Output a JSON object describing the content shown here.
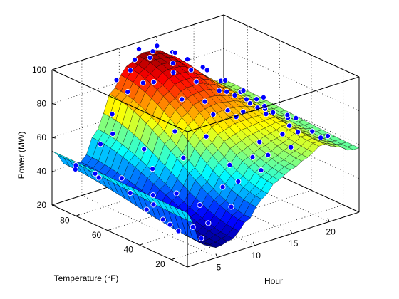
{
  "chart_data": {
    "type": "surface-scatter-3d",
    "axes": {
      "x": {
        "label": "Hour",
        "range": [
          1,
          24
        ],
        "ticks": [
          "5",
          "10",
          "15",
          "20"
        ]
      },
      "y": {
        "label": "Temperature (°F)",
        "range": [
          10,
          95
        ],
        "ticks": [
          "20",
          "40",
          "60",
          "80"
        ]
      },
      "z": {
        "label": "Power (MW)",
        "range": [
          20,
          100
        ],
        "ticks": [
          "20",
          "40",
          "60",
          "80",
          "100"
        ]
      }
    },
    "grid": true,
    "colormap": "jet",
    "surface_profile": {
      "hour": [
        1,
        3,
        5,
        7,
        9,
        11,
        13,
        15,
        17,
        19,
        21,
        23
      ],
      "power_at_high_temperature": [
        52,
        41,
        40,
        56,
        76,
        88,
        93,
        92,
        86,
        76,
        68,
        62
      ],
      "power_at_low_temperature": [
        52,
        30,
        26,
        28,
        36,
        46,
        54,
        58,
        62,
        67,
        63,
        58
      ]
    },
    "scatter_series": [
      {
        "marker": "filled-circle",
        "color": "#0000ff",
        "points_note_free_sample": true,
        "points": [
          [
            1,
            80,
            50
          ],
          [
            2,
            85,
            44
          ],
          [
            3,
            75,
            42
          ],
          [
            4,
            82,
            40
          ],
          [
            5,
            70,
            41
          ],
          [
            6,
            88,
            52
          ],
          [
            7,
            60,
            48
          ],
          [
            7,
            85,
            58
          ],
          [
            8,
            90,
            66
          ],
          [
            8,
            70,
            54
          ],
          [
            9,
            85,
            80
          ],
          [
            9,
            92,
            84
          ],
          [
            10,
            88,
            90
          ],
          [
            10,
            80,
            86
          ],
          [
            11,
            90,
            94
          ],
          [
            11,
            78,
            86
          ],
          [
            12,
            85,
            96
          ],
          [
            12,
            92,
            98
          ],
          [
            13,
            88,
            97
          ],
          [
            13,
            75,
            90
          ],
          [
            14,
            90,
            98
          ],
          [
            14,
            80,
            92
          ],
          [
            15,
            85,
            95
          ],
          [
            15,
            70,
            84
          ],
          [
            16,
            88,
            92
          ],
          [
            16,
            78,
            86
          ],
          [
            17,
            85,
            88
          ],
          [
            17,
            65,
            78
          ],
          [
            18,
            80,
            84
          ],
          [
            18,
            60,
            76
          ],
          [
            19,
            82,
            80
          ],
          [
            19,
            55,
            72
          ],
          [
            20,
            78,
            74
          ],
          [
            20,
            62,
            70
          ],
          [
            21,
            80,
            72
          ],
          [
            21,
            55,
            66
          ],
          [
            22,
            75,
            66
          ],
          [
            22,
            60,
            64
          ],
          [
            23,
            78,
            64
          ],
          [
            23,
            50,
            60
          ],
          [
            24,
            70,
            62
          ],
          [
            24,
            55,
            58
          ],
          [
            2,
            30,
            38
          ],
          [
            3,
            25,
            32
          ],
          [
            4,
            35,
            30
          ],
          [
            5,
            20,
            27
          ],
          [
            6,
            30,
            28
          ],
          [
            7,
            25,
            31
          ],
          [
            8,
            35,
            36
          ],
          [
            9,
            20,
            40
          ],
          [
            10,
            30,
            46
          ],
          [
            11,
            25,
            50
          ],
          [
            12,
            35,
            54
          ],
          [
            13,
            20,
            56
          ],
          [
            14,
            30,
            58
          ],
          [
            15,
            25,
            60
          ],
          [
            16,
            35,
            62
          ],
          [
            17,
            20,
            64
          ],
          [
            18,
            30,
            66
          ],
          [
            19,
            25,
            68
          ],
          [
            20,
            35,
            66
          ],
          [
            21,
            20,
            64
          ],
          [
            22,
            30,
            62
          ],
          [
            23,
            25,
            60
          ],
          [
            3,
            45,
            36
          ],
          [
            5,
            50,
            34
          ],
          [
            7,
            45,
            40
          ],
          [
            9,
            50,
            56
          ],
          [
            11,
            45,
            68
          ],
          [
            13,
            50,
            76
          ],
          [
            15,
            45,
            74
          ],
          [
            17,
            50,
            72
          ],
          [
            19,
            45,
            70
          ],
          [
            21,
            50,
            66
          ],
          [
            23,
            45,
            62
          ],
          [
            4,
            60,
            38
          ],
          [
            6,
            55,
            36
          ],
          [
            10,
            60,
            66
          ],
          [
            12,
            65,
            80
          ],
          [
            14,
            60,
            78
          ],
          [
            16,
            55,
            72
          ],
          [
            18,
            65,
            76
          ],
          [
            20,
            55,
            68
          ],
          [
            22,
            65,
            66
          ]
        ]
      }
    ]
  }
}
